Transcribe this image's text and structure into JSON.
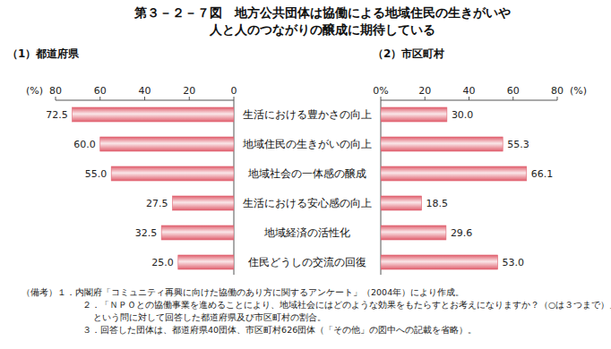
{
  "title": [
    "第３－２－７図　地方公共団体は協働による地域住民の生きがいや",
    "人と人のつながりの醸成に期待している"
  ],
  "chart_data": [
    {
      "type": "bar",
      "orientation": "horizontal",
      "subtitle": "（1）都道府県",
      "categories": [
        "生活における豊かさの向上",
        "地域住民の生きがいの向上",
        "地域社会の一体感の醸成",
        "生活における安心感の向上",
        "地域経済の活性化",
        "住民どうしの交流の回復"
      ],
      "values": [
        72.5,
        60.0,
        55.0,
        27.5,
        32.5,
        25.0
      ],
      "value_labels": [
        "72.5",
        "60.0",
        "55.0",
        "27.5",
        "32.5",
        "25.0"
      ],
      "color": "#e0606e",
      "xlabel": "(%)",
      "xlim": [
        0,
        80
      ],
      "xticks": [
        0,
        20,
        40,
        60,
        80
      ],
      "data_labels": true,
      "grid": false
    },
    {
      "type": "bar",
      "orientation": "horizontal",
      "subtitle": "（2）市区町村",
      "categories": [
        "生活における豊かさの向上",
        "地域住民の生きがいの向上",
        "地域社会の一体感の醸成",
        "生活における安心感の向上",
        "地域経済の活性化",
        "住民どうしの交流の回復"
      ],
      "values": [
        30.0,
        55.3,
        66.1,
        18.5,
        29.6,
        53.0
      ],
      "value_labels": [
        "30.0",
        "55.3",
        "66.1",
        "18.5",
        "29.6",
        "53.0"
      ],
      "color": "#e0606e",
      "xlabel": "(%)",
      "xlim": [
        0,
        80
      ],
      "xticks": [
        {
          "value": 0,
          "label": "0%"
        },
        20,
        40,
        60,
        80
      ],
      "data_labels": true,
      "grid": false
    }
  ],
  "notes": [
    "（備考）１．内閣府「コミュニティ再興に向けた協働のあり方に関するアンケート」（2004年）により作成。",
    "２．「ＮＰＯとの協働事業を進めることにより、地域社会にはどのような効果をもたらすとお考えになりますか？（○は３つまで）」",
    "という問に対して回答した都道府県及び市区町村の割合。",
    "３．回答した団体は、都道府県40団体、市区町村626団体（「その他」の図中への記載を省略）。"
  ]
}
